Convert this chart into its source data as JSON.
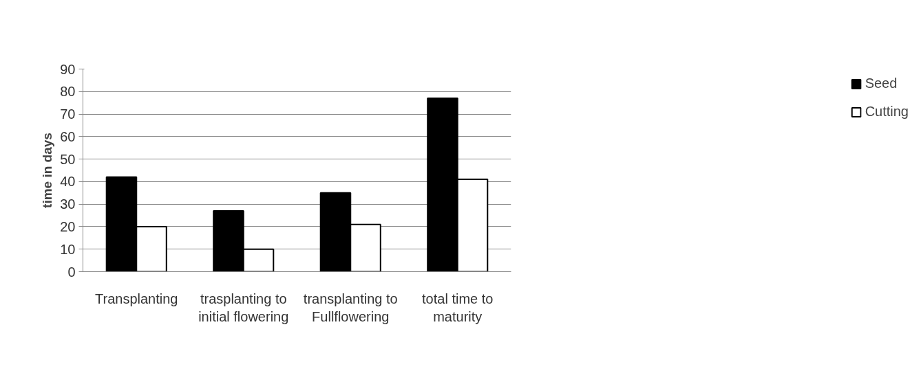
{
  "chart_data": {
    "type": "bar",
    "ylabel": "time in days",
    "categories": [
      "Transplanting",
      "trasplanting to initial flowering",
      "transplanting to Fullflowering",
      "total time to maturity"
    ],
    "series": [
      {
        "name": "Seed",
        "color": "#000000",
        "values": [
          42,
          27,
          35,
          77
        ]
      },
      {
        "name": "Cutting",
        "color": "#ffffff",
        "values": [
          20,
          10,
          21,
          41
        ]
      }
    ],
    "ylim": [
      0,
      90
    ],
    "yticks": [
      0,
      10,
      20,
      30,
      40,
      50,
      60,
      70,
      80,
      90
    ],
    "grid": "y",
    "legend": "right"
  }
}
